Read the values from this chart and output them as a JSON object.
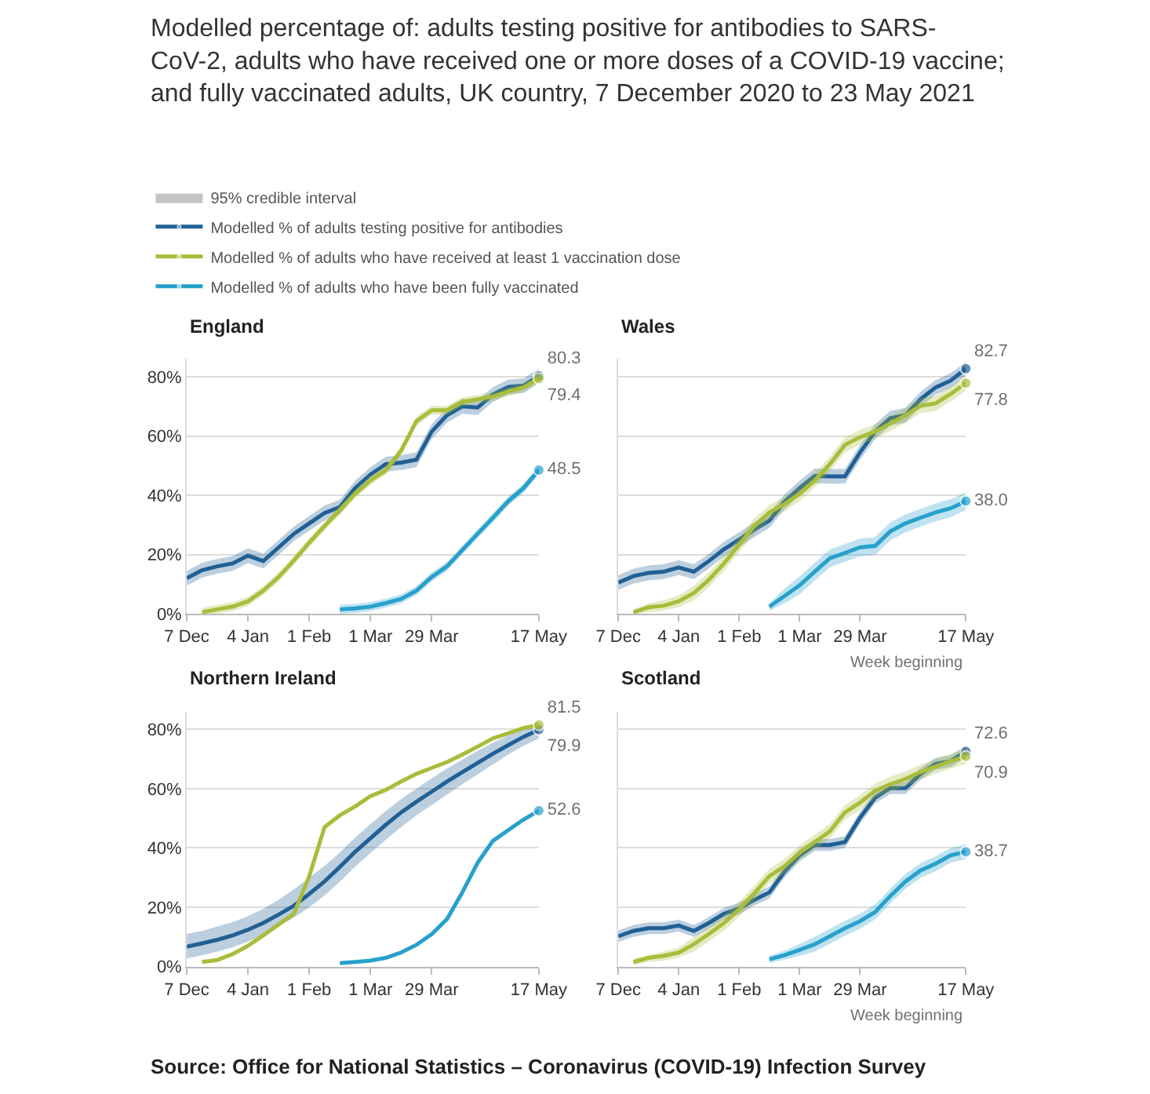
{
  "chart_data": [
    {
      "type": "line",
      "title": "England",
      "annotations": [
        "Modelled percentage of: adults testing positive for antibodies to SARS-CoV-2, adults who have received one or more doses of a COVID-19 vaccine; and fully vaccinated adults, UK country, 7 December 2020 to 23 May 2021",
        "95% credible interval",
        "Source: Office for National Statistics – Coronavirus (COVID-19) Infection Survey"
      ],
      "legend": "top",
      "grid": "y",
      "x": [
        "2020-12-07",
        "2020-12-14",
        "2020-12-21",
        "2020-12-28",
        "2021-01-04",
        "2021-01-11",
        "2021-01-18",
        "2021-01-25",
        "2021-02-01",
        "2021-02-08",
        "2021-02-15",
        "2021-02-22",
        "2021-03-01",
        "2021-03-08",
        "2021-03-15",
        "2021-03-22",
        "2021-03-29",
        "2021-04-05",
        "2021-04-12",
        "2021-04-19",
        "2021-04-26",
        "2021-05-03",
        "2021-05-10",
        "2021-05-17"
      ],
      "xlim": [
        "2020-12-07",
        "2021-05-17"
      ],
      "xticks": [
        {
          "value": "2020-12-07",
          "label": "7 Dec"
        },
        {
          "value": "2021-01-04",
          "label": "4 Jan"
        },
        {
          "value": "2021-02-01",
          "label": "1 Feb"
        },
        {
          "value": "2021-03-01",
          "label": "1 Mar"
        },
        {
          "value": "2021-03-29",
          "label": "29 Mar"
        },
        {
          "value": "2021-05-17",
          "label": "17 May"
        }
      ],
      "ylim": [
        0,
        86
      ],
      "yticks": [
        {
          "value": 0,
          "label": "0%"
        },
        {
          "value": 20,
          "label": "20%"
        },
        {
          "value": 40,
          "label": "40%"
        },
        {
          "value": 60,
          "label": "60%"
        },
        {
          "value": 80,
          "label": "80%"
        }
      ],
      "series": [
        {
          "name": "Modelled % of adults testing positive for antibodies",
          "color": "#206095",
          "values": [
            12.0,
            14.7,
            16.0,
            17.0,
            19.6,
            17.8,
            22.4,
            27.0,
            30.5,
            34.0,
            36.0,
            42.4,
            47.0,
            50.5,
            51.0,
            52.0,
            61.5,
            67.0,
            70.0,
            69.6,
            74.0,
            76.5,
            77.0,
            80.3
          ],
          "lower": [
            9.5,
            12.2,
            13.5,
            14.5,
            17.1,
            15.3,
            19.9,
            24.5,
            28.0,
            31.5,
            33.5,
            39.9,
            44.5,
            48.0,
            48.5,
            49.5,
            59.0,
            64.5,
            67.5,
            67.1,
            71.5,
            74.0,
            74.5,
            77.8
          ],
          "upper": [
            14.5,
            17.2,
            18.5,
            19.5,
            22.1,
            20.3,
            24.9,
            29.5,
            33.0,
            36.5,
            38.5,
            44.9,
            49.5,
            53.0,
            53.5,
            54.5,
            64.0,
            69.5,
            72.5,
            72.1,
            76.5,
            79.0,
            79.5,
            82.8
          ],
          "value_labels": [
            null,
            null,
            null,
            null,
            null,
            null,
            null,
            null,
            null,
            null,
            null,
            null,
            null,
            null,
            null,
            null,
            null,
            null,
            null,
            null,
            null,
            null,
            null,
            "80.3"
          ]
        },
        {
          "name": "Modelled % of adults who have received at least 1 vaccination dose",
          "color": "#a8bd3a",
          "values": [
            null,
            0.5,
            1.5,
            2.4,
            4.2,
            7.8,
            12.4,
            18.0,
            24.0,
            29.6,
            35.0,
            40.5,
            45.0,
            48.4,
            55.0,
            65.0,
            68.7,
            68.7,
            71.5,
            72.4,
            73.3,
            75.0,
            76.4,
            79.4
          ],
          "lower": [
            null,
            0.0,
            0.0,
            0.9,
            2.7,
            6.3,
            10.9,
            16.5,
            22.5,
            28.1,
            33.5,
            39.0,
            43.5,
            46.9,
            53.5,
            63.5,
            67.2,
            67.2,
            70.0,
            70.9,
            71.8,
            73.5,
            74.9,
            77.9
          ],
          "upper": [
            null,
            2.0,
            3.0,
            3.9,
            5.7,
            9.3,
            13.9,
            19.5,
            25.5,
            31.1,
            36.5,
            42.0,
            46.5,
            49.9,
            56.5,
            66.5,
            70.2,
            70.2,
            73.0,
            73.9,
            74.8,
            76.5,
            77.9,
            80.9
          ],
          "value_labels": [
            null,
            null,
            null,
            null,
            null,
            null,
            null,
            null,
            null,
            null,
            null,
            null,
            null,
            null,
            null,
            null,
            null,
            null,
            null,
            null,
            null,
            null,
            null,
            "79.4"
          ]
        },
        {
          "name": "Modelled % of adults who have been fully vaccinated",
          "color": "#27a0cc",
          "values": [
            null,
            null,
            null,
            null,
            null,
            null,
            null,
            null,
            null,
            null,
            1.5,
            1.8,
            2.4,
            3.6,
            5.0,
            7.8,
            12.4,
            16.0,
            21.5,
            27.0,
            32.4,
            38.0,
            42.4,
            48.5
          ],
          "lower": [
            null,
            null,
            null,
            null,
            null,
            null,
            null,
            null,
            null,
            null,
            0.0,
            0.3,
            0.9,
            2.1,
            3.5,
            6.3,
            10.9,
            14.5,
            20.0,
            25.5,
            30.9,
            36.5,
            40.9,
            47.0
          ],
          "upper": [
            null,
            null,
            null,
            null,
            null,
            null,
            null,
            null,
            null,
            null,
            3.0,
            3.3,
            3.9,
            5.1,
            6.5,
            9.3,
            13.9,
            17.5,
            23.0,
            28.5,
            33.9,
            39.5,
            43.9,
            50.0
          ],
          "value_labels": [
            null,
            null,
            null,
            null,
            null,
            null,
            null,
            null,
            null,
            null,
            null,
            null,
            null,
            null,
            null,
            null,
            null,
            null,
            null,
            null,
            null,
            null,
            null,
            "48.5"
          ]
        }
      ]
    },
    {
      "type": "line",
      "title": "Wales",
      "xlabel": "Week beginning",
      "grid": "y",
      "tick_labels": "x",
      "x": [
        "2020-12-07",
        "2020-12-14",
        "2020-12-21",
        "2020-12-28",
        "2021-01-04",
        "2021-01-11",
        "2021-01-18",
        "2021-01-25",
        "2021-02-01",
        "2021-02-08",
        "2021-02-15",
        "2021-02-22",
        "2021-03-01",
        "2021-03-08",
        "2021-03-15",
        "2021-03-22",
        "2021-03-29",
        "2021-04-05",
        "2021-04-12",
        "2021-04-19",
        "2021-04-26",
        "2021-05-03",
        "2021-05-10",
        "2021-05-17"
      ],
      "xlim": [
        "2020-12-07",
        "2021-05-17"
      ],
      "xticks": [
        {
          "value": "2020-12-07",
          "label": "7 Dec"
        },
        {
          "value": "2021-01-04",
          "label": "4 Jan"
        },
        {
          "value": "2021-02-01",
          "label": "1 Feb"
        },
        {
          "value": "2021-03-01",
          "label": "1 Mar"
        },
        {
          "value": "2021-03-29",
          "label": "29 Mar"
        },
        {
          "value": "2021-05-17",
          "label": "17 May"
        }
      ],
      "ylim": [
        0,
        86
      ],
      "yticks": [
        {
          "value": 0,
          "label": null
        },
        {
          "value": 20,
          "label": null
        },
        {
          "value": 40,
          "label": null
        },
        {
          "value": 60,
          "label": null
        },
        {
          "value": 80,
          "label": null
        }
      ],
      "series": [
        {
          "color": "#206095",
          "values": [
            10.5,
            12.7,
            13.8,
            14.2,
            15.6,
            14.2,
            17.8,
            21.8,
            25.0,
            28.4,
            31.5,
            37.8,
            42.4,
            46.5,
            46.4,
            46.4,
            54.5,
            61.5,
            66.0,
            67.0,
            72.4,
            76.4,
            78.7,
            82.7
          ],
          "lower": [
            8.0,
            10.2,
            11.3,
            11.7,
            13.1,
            11.7,
            15.3,
            19.3,
            22.5,
            25.9,
            29.0,
            35.3,
            39.9,
            44.0,
            43.9,
            43.9,
            52.0,
            59.0,
            63.5,
            64.5,
            69.9,
            73.9,
            76.2,
            80.2
          ],
          "upper": [
            13.0,
            15.2,
            16.3,
            16.7,
            18.1,
            16.7,
            20.3,
            24.3,
            27.5,
            30.9,
            34.0,
            40.3,
            44.9,
            49.0,
            48.9,
            48.9,
            57.0,
            64.0,
            68.5,
            69.5,
            74.9,
            78.9,
            81.2,
            85.2
          ],
          "value_labels": [
            null,
            null,
            null,
            null,
            null,
            null,
            null,
            null,
            null,
            null,
            null,
            null,
            null,
            null,
            null,
            null,
            null,
            null,
            null,
            null,
            null,
            null,
            null,
            "82.7"
          ]
        },
        {
          "color": "#a8bd3a",
          "values": [
            null,
            0.5,
            2.2,
            2.7,
            4.2,
            7.0,
            11.5,
            17.0,
            23.3,
            29.6,
            34.2,
            37.0,
            40.5,
            45.0,
            50.5,
            57.0,
            59.6,
            61.5,
            64.2,
            67.0,
            70.2,
            71.0,
            74.2,
            77.8
          ],
          "lower": [
            null,
            0.0,
            0.5,
            1.0,
            2.2,
            4.5,
            9.0,
            14.5,
            20.8,
            27.1,
            31.7,
            34.5,
            38.0,
            42.5,
            48.0,
            54.5,
            57.1,
            59.0,
            61.7,
            64.5,
            67.7,
            68.5,
            71.7,
            75.3
          ],
          "upper": [
            null,
            1.5,
            3.5,
            4.5,
            6.2,
            9.5,
            14.0,
            19.5,
            25.8,
            32.1,
            36.7,
            39.5,
            43.0,
            47.5,
            53.0,
            59.5,
            62.1,
            64.0,
            66.7,
            69.5,
            72.7,
            73.5,
            76.7,
            80.3
          ],
          "value_labels": [
            null,
            null,
            null,
            null,
            null,
            null,
            null,
            null,
            null,
            null,
            null,
            null,
            null,
            null,
            null,
            null,
            null,
            null,
            null,
            null,
            null,
            null,
            null,
            "77.8"
          ]
        },
        {
          "color": "#27a0cc",
          "values": [
            null,
            null,
            null,
            null,
            null,
            null,
            null,
            null,
            null,
            null,
            2.4,
            6.0,
            9.6,
            14.2,
            18.7,
            20.5,
            22.4,
            22.9,
            27.8,
            30.5,
            32.4,
            34.2,
            35.6,
            38.0
          ],
          "lower": [
            null,
            null,
            null,
            null,
            null,
            null,
            null,
            null,
            null,
            null,
            1.0,
            3.5,
            6.6,
            11.2,
            15.7,
            17.5,
            19.4,
            19.9,
            24.8,
            27.5,
            29.4,
            31.2,
            32.6,
            35.0
          ],
          "upper": [
            null,
            null,
            null,
            null,
            null,
            null,
            null,
            null,
            null,
            null,
            3.5,
            8.5,
            12.6,
            17.2,
            21.7,
            23.5,
            25.4,
            25.9,
            30.8,
            33.5,
            35.4,
            37.2,
            38.6,
            41.0
          ],
          "value_labels": [
            null,
            null,
            null,
            null,
            null,
            null,
            null,
            null,
            null,
            null,
            null,
            null,
            null,
            null,
            null,
            null,
            null,
            null,
            null,
            null,
            null,
            null,
            null,
            "38.0"
          ]
        }
      ]
    },
    {
      "type": "line",
      "title": "Northern Ireland",
      "grid": "y",
      "x": [
        "2020-12-07",
        "2020-12-14",
        "2020-12-21",
        "2020-12-28",
        "2021-01-04",
        "2021-01-11",
        "2021-01-18",
        "2021-01-25",
        "2021-02-01",
        "2021-02-08",
        "2021-02-15",
        "2021-02-22",
        "2021-03-01",
        "2021-03-08",
        "2021-03-15",
        "2021-03-22",
        "2021-03-29",
        "2021-04-05",
        "2021-04-12",
        "2021-04-19",
        "2021-04-26",
        "2021-05-03",
        "2021-05-10",
        "2021-05-17"
      ],
      "xlim": [
        "2020-12-07",
        "2021-05-17"
      ],
      "xticks": [
        {
          "value": "2020-12-07",
          "label": "7 Dec"
        },
        {
          "value": "2021-01-04",
          "label": "4 Jan"
        },
        {
          "value": "2021-02-01",
          "label": "1 Feb"
        },
        {
          "value": "2021-03-01",
          "label": "1 Mar"
        },
        {
          "value": "2021-03-29",
          "label": "29 Mar"
        },
        {
          "value": "2021-05-17",
          "label": "17 May"
        }
      ],
      "ylim": [
        0,
        86
      ],
      "yticks": [
        {
          "value": 0,
          "label": "0%"
        },
        {
          "value": 20,
          "label": "20%"
        },
        {
          "value": 40,
          "label": "40%"
        },
        {
          "value": 60,
          "label": "60%"
        },
        {
          "value": 80,
          "label": "80%"
        }
      ],
      "series": [
        {
          "color": "#206095",
          "values": [
            6.7,
            7.8,
            9.0,
            10.5,
            12.4,
            14.7,
            17.5,
            20.5,
            24.5,
            28.7,
            33.6,
            38.7,
            43.3,
            47.8,
            52.0,
            55.6,
            59.0,
            62.4,
            65.6,
            68.7,
            71.8,
            74.7,
            77.5,
            79.9
          ],
          "lower": [
            2.7,
            3.8,
            5.0,
            6.5,
            8.4,
            10.7,
            13.5,
            16.5,
            20.0,
            24.0,
            28.6,
            33.7,
            38.3,
            42.8,
            47.0,
            51.0,
            54.5,
            58.0,
            61.5,
            64.8,
            68.2,
            71.5,
            74.5,
            77.0
          ],
          "upper": [
            11.0,
            12.0,
            13.5,
            15.0,
            17.0,
            19.5,
            22.5,
            26.0,
            30.0,
            34.0,
            38.5,
            43.5,
            48.0,
            52.5,
            56.5,
            60.0,
            63.5,
            66.8,
            69.8,
            72.8,
            75.5,
            78.0,
            80.5,
            82.5
          ],
          "value_labels": [
            null,
            null,
            null,
            null,
            null,
            null,
            null,
            null,
            null,
            null,
            null,
            null,
            null,
            null,
            null,
            null,
            null,
            null,
            null,
            null,
            null,
            null,
            null,
            "79.9"
          ]
        },
        {
          "color": "#a8bd3a",
          "values": [
            null,
            1.5,
            2.2,
            4.2,
            7.0,
            10.5,
            14.2,
            17.8,
            30.5,
            47.0,
            51.0,
            54.0,
            57.5,
            59.6,
            62.4,
            65.0,
            67.0,
            69.0,
            71.5,
            74.2,
            77.0,
            78.7,
            80.5,
            81.5
          ],
          "value_labels": [
            null,
            null,
            null,
            null,
            null,
            null,
            null,
            null,
            null,
            null,
            null,
            null,
            null,
            null,
            null,
            null,
            null,
            null,
            null,
            null,
            null,
            null,
            null,
            "81.5"
          ]
        },
        {
          "color": "#27a0cc",
          "values": [
            null,
            null,
            null,
            null,
            null,
            null,
            null,
            null,
            null,
            null,
            1.1,
            1.5,
            2.0,
            2.9,
            4.7,
            7.3,
            10.9,
            16.0,
            25.0,
            35.0,
            42.4,
            46.0,
            49.6,
            52.6
          ],
          "value_labels": [
            null,
            null,
            null,
            null,
            null,
            null,
            null,
            null,
            null,
            null,
            null,
            null,
            null,
            null,
            null,
            null,
            null,
            null,
            null,
            null,
            null,
            null,
            null,
            "52.6"
          ]
        }
      ]
    },
    {
      "type": "line",
      "title": "Scotland",
      "xlabel": "Week beginning",
      "grid": "y",
      "tick_labels": "x",
      "x": [
        "2020-12-07",
        "2020-12-14",
        "2020-12-21",
        "2020-12-28",
        "2021-01-04",
        "2021-01-11",
        "2021-01-18",
        "2021-01-25",
        "2021-02-01",
        "2021-02-08",
        "2021-02-15",
        "2021-02-22",
        "2021-03-01",
        "2021-03-08",
        "2021-03-15",
        "2021-03-22",
        "2021-03-29",
        "2021-04-05",
        "2021-04-12",
        "2021-04-19",
        "2021-04-26",
        "2021-05-03",
        "2021-05-10",
        "2021-05-17"
      ],
      "xlim": [
        "2020-12-07",
        "2021-05-17"
      ],
      "xticks": [
        {
          "value": "2020-12-07",
          "label": "7 Dec"
        },
        {
          "value": "2021-01-04",
          "label": "4 Jan"
        },
        {
          "value": "2021-02-01",
          "label": "1 Feb"
        },
        {
          "value": "2021-03-01",
          "label": "1 Mar"
        },
        {
          "value": "2021-03-29",
          "label": "29 Mar"
        },
        {
          "value": "2021-05-17",
          "label": "17 May"
        }
      ],
      "ylim": [
        0,
        86
      ],
      "yticks": [
        {
          "value": 0,
          "label": null
        },
        {
          "value": 20,
          "label": null
        },
        {
          "value": 40,
          "label": null
        },
        {
          "value": 60,
          "label": null
        },
        {
          "value": 80,
          "label": null
        }
      ],
      "series": [
        {
          "color": "#206095",
          "values": [
            10.2,
            12.0,
            12.9,
            12.9,
            13.8,
            12.0,
            14.7,
            17.8,
            19.6,
            22.5,
            25.0,
            32.0,
            37.5,
            41.0,
            41.0,
            42.0,
            50.2,
            57.0,
            60.2,
            60.2,
            65.0,
            68.4,
            69.3,
            72.6
          ],
          "lower": [
            8.2,
            10.0,
            10.9,
            10.9,
            11.8,
            10.0,
            12.7,
            15.8,
            17.6,
            20.5,
            23.0,
            30.0,
            35.5,
            39.0,
            39.0,
            40.0,
            48.2,
            55.0,
            58.2,
            58.2,
            63.0,
            66.4,
            67.3,
            70.6
          ],
          "upper": [
            12.2,
            14.0,
            14.9,
            14.9,
            15.8,
            14.0,
            16.7,
            19.8,
            21.6,
            24.5,
            27.0,
            34.0,
            39.5,
            43.0,
            43.0,
            44.0,
            52.2,
            59.0,
            62.2,
            62.2,
            67.0,
            70.4,
            71.3,
            74.6
          ],
          "value_labels": [
            null,
            null,
            null,
            null,
            null,
            null,
            null,
            null,
            null,
            null,
            null,
            null,
            null,
            null,
            null,
            null,
            null,
            null,
            null,
            null,
            null,
            null,
            null,
            "72.6"
          ]
        },
        {
          "color": "#a8bd3a",
          "values": [
            null,
            1.5,
            2.9,
            3.6,
            4.7,
            7.5,
            11.0,
            14.7,
            19.3,
            24.7,
            30.5,
            33.8,
            38.4,
            42.0,
            45.6,
            52.0,
            55.3,
            59.3,
            61.5,
            63.3,
            65.6,
            67.5,
            69.3,
            70.9
          ],
          "lower": [
            null,
            0.5,
            1.5,
            2.0,
            3.0,
            5.0,
            8.5,
            12.2,
            16.8,
            22.2,
            28.0,
            31.3,
            35.9,
            39.5,
            43.1,
            49.5,
            52.8,
            56.8,
            59.0,
            60.8,
            63.1,
            65.0,
            66.8,
            68.4
          ],
          "upper": [
            null,
            2.5,
            4.0,
            5.0,
            6.5,
            10.0,
            13.5,
            17.2,
            21.8,
            27.2,
            33.0,
            36.3,
            40.9,
            44.5,
            48.1,
            54.5,
            57.8,
            61.8,
            64.0,
            65.8,
            68.1,
            70.0,
            71.8,
            73.4
          ],
          "value_labels": [
            null,
            null,
            null,
            null,
            null,
            null,
            null,
            null,
            null,
            null,
            null,
            null,
            null,
            null,
            null,
            null,
            null,
            null,
            null,
            null,
            null,
            null,
            null,
            "70.9"
          ]
        },
        {
          "color": "#27a0cc",
          "values": [
            null,
            null,
            null,
            null,
            null,
            null,
            null,
            null,
            null,
            null,
            2.4,
            3.8,
            5.6,
            7.5,
            10.2,
            12.9,
            15.3,
            18.4,
            23.8,
            28.7,
            32.4,
            34.7,
            37.5,
            38.7
          ],
          "lower": [
            null,
            null,
            null,
            null,
            null,
            null,
            null,
            null,
            null,
            null,
            1.2,
            2.3,
            3.6,
            5.0,
            7.7,
            10.4,
            12.8,
            15.9,
            21.3,
            26.2,
            29.9,
            32.2,
            35.0,
            36.2
          ],
          "upper": [
            null,
            null,
            null,
            null,
            null,
            null,
            null,
            null,
            null,
            null,
            3.6,
            5.3,
            7.6,
            10.0,
            12.7,
            15.4,
            17.8,
            20.9,
            26.3,
            31.2,
            34.9,
            37.2,
            40.0,
            41.2
          ],
          "value_labels": [
            null,
            null,
            null,
            null,
            null,
            null,
            null,
            null,
            null,
            null,
            null,
            null,
            null,
            null,
            null,
            null,
            null,
            null,
            null,
            null,
            null,
            null,
            null,
            "38.7"
          ]
        }
      ]
    }
  ]
}
